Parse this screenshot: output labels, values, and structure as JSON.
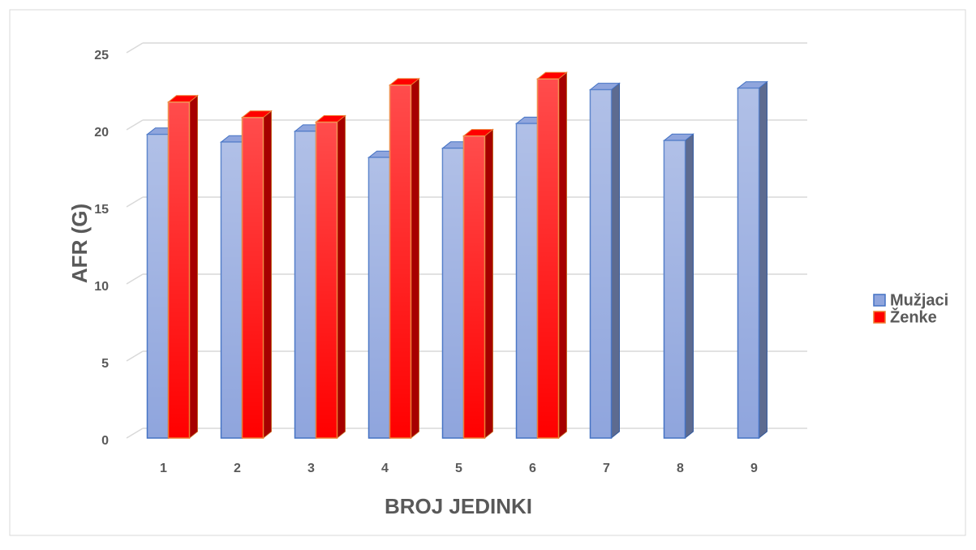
{
  "chart_data": {
    "type": "bar3d",
    "categories": [
      "1",
      "2",
      "3",
      "4",
      "5",
      "6",
      "7",
      "8",
      "9"
    ],
    "series": [
      {
        "name": "Mužjaci",
        "color": "#8fa5dd",
        "edge": "#4472c4",
        "values": [
          19.7,
          19.2,
          19.9,
          18.2,
          18.8,
          20.4,
          22.6,
          19.3,
          22.7
        ]
      },
      {
        "name": "Ženke",
        "color": "#ff0000",
        "edge": "#ed7d31",
        "values": [
          21.8,
          20.8,
          20.5,
          22.9,
          19.6,
          23.3,
          null,
          null,
          null
        ]
      }
    ],
    "x_label": "BROJ JEDINKI",
    "y_label": "AFR (G)",
    "ylim": [
      0,
      25
    ],
    "yticks": [
      0,
      5,
      10,
      15,
      20,
      25
    ],
    "grid": true,
    "legend": "right"
  }
}
